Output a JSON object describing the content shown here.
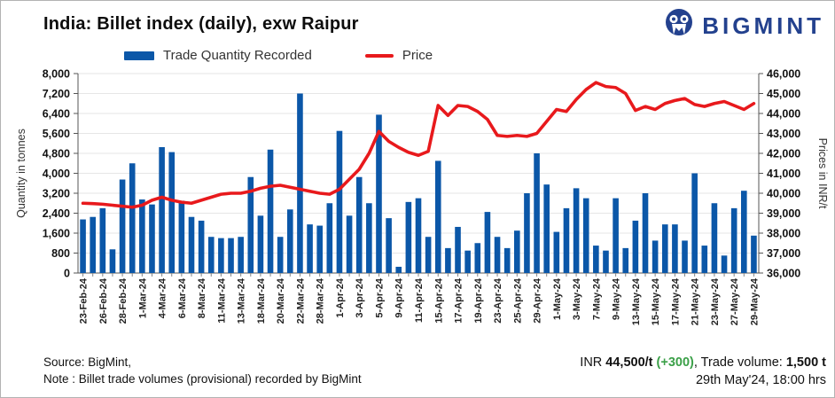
{
  "header": {
    "title": "India: Billet index (daily), exw Raipur",
    "logo_text": "BIGMINT",
    "logo_color": "#23418E"
  },
  "legend": {
    "items": [
      {
        "label": "Trade Quantity Recorded",
        "color": "#0B57A8",
        "type": "bar"
      },
      {
        "label": "Price",
        "color": "#E8191C",
        "type": "line"
      }
    ]
  },
  "footer": {
    "source_line": "Source: BigMint,",
    "note_line": "Note : Billet trade volumes (provisional) recorded by BigMint"
  },
  "price_summary": {
    "currency_prefix": "INR ",
    "price": "44,500/t",
    "change": "(+300)",
    "change_color": "#3BA048",
    "separator": ", ",
    "volume_label": "Trade volume: ",
    "volume": "1,500 t",
    "timestamp": "29th May'24, 18:00 hrs"
  },
  "chart_data": {
    "type": "combo",
    "x_tick_labels": [
      "23-Feb-24",
      "26-Feb-24",
      "28-Feb-24",
      "1-Mar-24",
      "4-Mar-24",
      "6-Mar-24",
      "8-Mar-24",
      "11-Mar-24",
      "13-Mar-24",
      "18-Mar-24",
      "20-Mar-24",
      "22-Mar-24",
      "28-Mar-24",
      "1-Apr-24",
      "3-Apr-24",
      "5-Apr-24",
      "9-Apr-24",
      "11-Apr-24",
      "15-Apr-24",
      "17-Apr-24",
      "19-Apr-24",
      "23-Apr-24",
      "25-Apr-24",
      "29-Apr-24",
      "1-May-24",
      "3-May-24",
      "7-May-24",
      "9-May-24",
      "13-May-24",
      "15-May-24",
      "17-May-24",
      "21-May-24",
      "23-May-24",
      "27-May-24",
      "29-May-24"
    ],
    "x_label_every": 2,
    "left_axis": {
      "title": "Quantity in tonnes",
      "min": 0,
      "max": 8000,
      "step": 800
    },
    "right_axis": {
      "title": "Prices in INR/t",
      "min": 36000,
      "max": 46000,
      "step": 1000
    },
    "grid": true,
    "legend_position": "top",
    "series": [
      {
        "name": "Trade Quantity Recorded",
        "type": "bar",
        "axis": "left",
        "color": "#0B57A8",
        "values": [
          2150,
          2250,
          2600,
          950,
          3750,
          4400,
          2950,
          2750,
          5050,
          4850,
          2900,
          2250,
          2100,
          1450,
          1400,
          1400,
          1450,
          3850,
          2300,
          4950,
          1450,
          2550,
          7200,
          1950,
          1900,
          2800,
          5700,
          2300,
          3850,
          2800,
          6350,
          2200,
          250,
          2850,
          3000,
          1450,
          4500,
          1000,
          1850,
          900,
          1200,
          2450,
          1450,
          1000,
          1700,
          3200,
          4800,
          3550,
          1650,
          2600,
          3400,
          3000,
          1100,
          900,
          3000,
          1000,
          2100,
          3200,
          1300,
          1950,
          1950,
          1300,
          4000,
          1100,
          2800,
          700,
          2600,
          3300,
          1500
        ]
      },
      {
        "name": "Price",
        "type": "line",
        "axis": "right",
        "color": "#E8191C",
        "values": [
          39500,
          39480,
          39450,
          39400,
          39350,
          39300,
          39400,
          39650,
          39800,
          39650,
          39550,
          39500,
          39650,
          39800,
          39950,
          40000,
          40000,
          40100,
          40250,
          40350,
          40400,
          40300,
          40200,
          40100,
          40000,
          39950,
          40200,
          40700,
          41200,
          42000,
          43100,
          42600,
          42300,
          42050,
          41900,
          42100,
          44400,
          43900,
          44400,
          44350,
          44100,
          43700,
          42900,
          42850,
          42900,
          42850,
          43000,
          43600,
          44200,
          44100,
          44700,
          45200,
          45550,
          45350,
          45300,
          45000,
          44150,
          44350,
          44200,
          44500,
          44650,
          44750,
          44450,
          44350,
          44500,
          44600,
          44400,
          44200,
          44500
        ]
      }
    ]
  }
}
